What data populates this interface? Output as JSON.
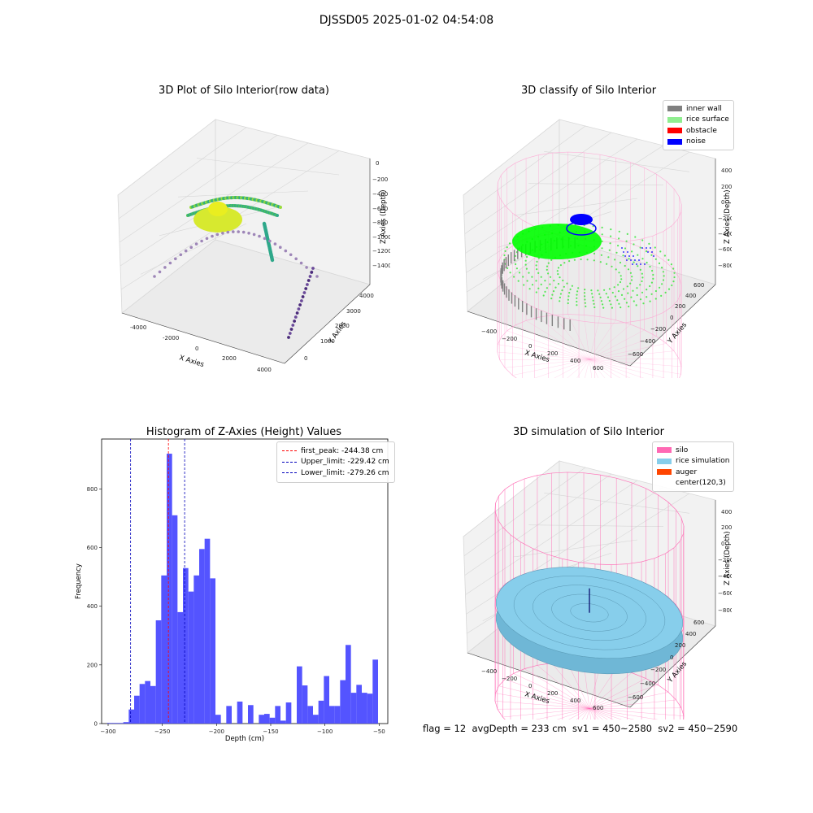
{
  "suptitle": "DJSSD05 2025-01-02 04:54:08",
  "status_line": "flag = 12  avgDepth = 233 cm  sv1 = 450~2580  sv2 = 450~2590",
  "colors": {
    "inner_wall": "#808080",
    "rice_surface": "#90ee90",
    "obstacle": "#ff0000",
    "noise": "#0000ff",
    "silo": "#ff69b4",
    "rice_simulation": "#87ceeb",
    "auger": "#ff4500",
    "histogram": "#4b4bff",
    "first_peak": "#ff0000",
    "limits": "#0000bb"
  },
  "chart_data": [
    {
      "type": "scatter",
      "title": "3D Plot of Silo Interior(row data)",
      "xlabel": "X Axies",
      "ylabel": "Y Axies",
      "zlabel": "Z Axies (Depth)",
      "x_ticks": [
        "-4000",
        "-2000",
        "0",
        "2000",
        "4000"
      ],
      "y_ticks": [
        "0",
        "1000",
        "2000",
        "3000",
        "4000"
      ],
      "z_ticks": [
        "0",
        "−200",
        "−400",
        "−600",
        "−800",
        "−1000",
        "−1200",
        "−1400"
      ]
    },
    {
      "type": "scatter",
      "title": "3D classify of Silo Interior",
      "xlabel": "X Axies",
      "ylabel": "Y Axies",
      "zlabel": "Z Axies (Depth)",
      "x_ticks": [
        "−400",
        "−200",
        "0",
        "200",
        "400",
        "600"
      ],
      "y_ticks": [
        "−600",
        "−400",
        "−200",
        "0",
        "200",
        "400",
        "600"
      ],
      "z_ticks": [
        "400",
        "200",
        "0",
        "−200",
        "−400",
        "−600",
        "−800"
      ],
      "legend": [
        "inner wall",
        "rice surface",
        "obstacle",
        "noise"
      ]
    },
    {
      "type": "bar",
      "title": "Histogram of Z-Axies (Height) Values",
      "xlabel": "Depth (cm)",
      "ylabel": "Frequency",
      "xlim": [
        -306,
        -42
      ],
      "ylim": [
        0,
        970
      ],
      "x_ticks": [
        -300,
        -250,
        -200,
        -150,
        -100,
        -50
      ],
      "y_ticks": [
        0,
        200,
        400,
        600,
        800
      ],
      "bin_start": -301,
      "bin_width": 5,
      "values": [
        2,
        2,
        2,
        5,
        48,
        95,
        135,
        145,
        128,
        352,
        505,
        920,
        710,
        380,
        530,
        450,
        505,
        595,
        630,
        495,
        30,
        0,
        60,
        0,
        75,
        0,
        63,
        0,
        30,
        33,
        20,
        60,
        10,
        72,
        0,
        195,
        130,
        60,
        30,
        78,
        162,
        60,
        60,
        148,
        268,
        105,
        132,
        105,
        102,
        218
      ],
      "vlines": [
        {
          "label": "first_peak: -244.38 cm",
          "x": -244.38,
          "color": "#ff0000"
        },
        {
          "label": "Upper_limit: -229.42 cm",
          "x": -229.42,
          "color": "#0000bb"
        },
        {
          "label": "Lower_limit: -279.26 cm",
          "x": -279.26,
          "color": "#0000bb"
        }
      ]
    },
    {
      "type": "area",
      "title": "3D simulation of Silo Interior",
      "xlabel": "X Axies",
      "ylabel": "Y Axies",
      "zlabel": "Z Axies (Depth)",
      "x_ticks": [
        "−400",
        "−200",
        "0",
        "200",
        "400",
        "600"
      ],
      "y_ticks": [
        "−600",
        "−400",
        "−200",
        "0",
        "200",
        "400",
        "600"
      ],
      "z_ticks": [
        "400",
        "200",
        "0",
        "−200",
        "−400",
        "−600",
        "−800"
      ],
      "legend": [
        "silo",
        "rice simulation",
        "auger",
        "center(120,3)"
      ]
    }
  ]
}
